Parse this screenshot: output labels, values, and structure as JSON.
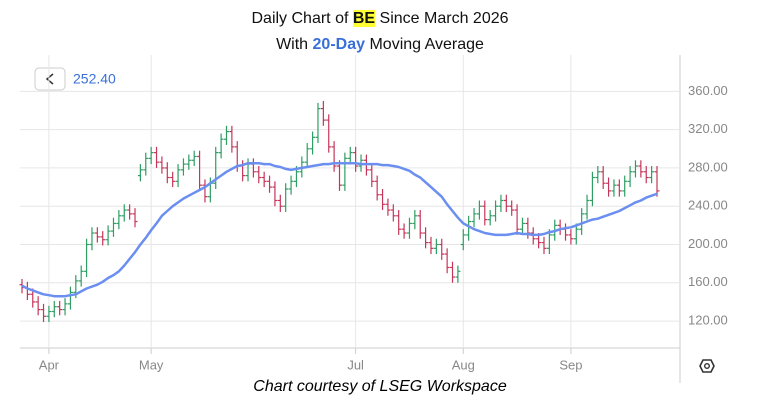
{
  "chart_data": {
    "type": "ohlc",
    "title_parts": [
      "Daily Chart of",
      "BE",
      "Since March 2026"
    ],
    "subtitle_parts": [
      "With",
      "20-Day",
      "Moving Average"
    ],
    "readout": "252.40",
    "footer": "Chart courtesy of LSEG Workspace",
    "categories": [
      null,
      null,
      null,
      null,
      null,
      "Apr",
      null,
      null,
      null,
      null,
      null,
      null,
      null,
      null,
      null,
      null,
      null,
      null,
      null,
      null,
      null,
      null,
      null,
      null,
      "May",
      null,
      null,
      null,
      null,
      null,
      null,
      null,
      null,
      null,
      null,
      null,
      null,
      null,
      null,
      null,
      null,
      null,
      null,
      null,
      null,
      null,
      null,
      null,
      null,
      null,
      null,
      null,
      null,
      null,
      null,
      null,
      null,
      null,
      null,
      null,
      null,
      null,
      "Jul",
      null,
      null,
      null,
      null,
      null,
      null,
      null,
      null,
      null,
      null,
      null,
      null,
      null,
      null,
      null,
      null,
      null,
      null,
      null,
      "Aug",
      null,
      null,
      null,
      null,
      null,
      null,
      null,
      null,
      null,
      null,
      null,
      null,
      null,
      null,
      null,
      null,
      null,
      null,
      null,
      "Sep",
      null,
      null,
      null,
      null,
      null,
      null,
      null,
      null,
      null,
      null,
      null,
      null,
      null,
      null,
      null,
      null
    ],
    "open": [
      158,
      155,
      148,
      140,
      132,
      125,
      130,
      135,
      132,
      138,
      150,
      162,
      172,
      200,
      212,
      208,
      205,
      214,
      222,
      230,
      236,
      232,
      272,
      278,
      290,
      296,
      286,
      280,
      270,
      266,
      278,
      284,
      288,
      292,
      262,
      250,
      264,
      296,
      310,
      318,
      302,
      282,
      272,
      284,
      276,
      270,
      266,
      260,
      246,
      240,
      258,
      266,
      276,
      286,
      300,
      312,
      342,
      330,
      302,
      282,
      262,
      290,
      296,
      282,
      288,
      278,
      266,
      252,
      242,
      236,
      230,
      216,
      212,
      222,
      230,
      212,
      202,
      196,
      200,
      190,
      176,
      166,
      200,
      210,
      224,
      232,
      240,
      226,
      230,
      240,
      246,
      240,
      236,
      216,
      222,
      212,
      206,
      202,
      196,
      210,
      220,
      216,
      210,
      206,
      216,
      232,
      246,
      270,
      276,
      264,
      256,
      262,
      256,
      266,
      276,
      282,
      276,
      270,
      276
    ],
    "high": [
      164,
      161,
      154,
      146,
      138,
      136,
      141,
      141,
      144,
      156,
      168,
      178,
      206,
      218,
      218,
      214,
      220,
      228,
      236,
      242,
      242,
      238,
      284,
      296,
      302,
      302,
      292,
      286,
      276,
      284,
      290,
      294,
      298,
      298,
      268,
      270,
      302,
      316,
      324,
      324,
      308,
      288,
      290,
      290,
      282,
      276,
      272,
      266,
      252,
      264,
      272,
      282,
      292,
      306,
      318,
      348,
      350,
      336,
      308,
      288,
      296,
      302,
      302,
      294,
      294,
      284,
      272,
      258,
      248,
      242,
      236,
      222,
      228,
      236,
      236,
      218,
      208,
      206,
      206,
      196,
      182,
      178,
      216,
      230,
      238,
      246,
      246,
      236,
      246,
      252,
      252,
      246,
      242,
      228,
      228,
      218,
      212,
      208,
      216,
      226,
      226,
      222,
      216,
      222,
      238,
      252,
      276,
      282,
      282,
      270,
      268,
      268,
      272,
      282,
      288,
      288,
      282,
      282,
      282
    ],
    "low": [
      149,
      142,
      134,
      126,
      119,
      119,
      124,
      126,
      126,
      132,
      144,
      156,
      166,
      194,
      202,
      199,
      199,
      208,
      216,
      224,
      226,
      218,
      266,
      272,
      284,
      280,
      274,
      264,
      260,
      260,
      272,
      278,
      282,
      256,
      244,
      244,
      258,
      290,
      304,
      296,
      276,
      266,
      266,
      270,
      264,
      260,
      254,
      240,
      234,
      234,
      252,
      260,
      270,
      280,
      294,
      306,
      324,
      296,
      276,
      256,
      256,
      284,
      276,
      276,
      272,
      260,
      246,
      236,
      230,
      224,
      210,
      206,
      206,
      216,
      206,
      196,
      190,
      190,
      184,
      170,
      160,
      160,
      194,
      204,
      218,
      226,
      220,
      220,
      224,
      234,
      234,
      230,
      210,
      210,
      206,
      200,
      196,
      190,
      190,
      204,
      210,
      204,
      200,
      200,
      210,
      226,
      240,
      264,
      258,
      250,
      250,
      250,
      250,
      260,
      270,
      270,
      264,
      264,
      250
    ],
    "close": [
      155,
      148,
      140,
      132,
      125,
      130,
      135,
      132,
      138,
      150,
      162,
      172,
      200,
      212,
      208,
      205,
      214,
      222,
      230,
      236,
      232,
      224,
      278,
      290,
      296,
      286,
      280,
      270,
      266,
      278,
      284,
      288,
      292,
      262,
      250,
      264,
      296,
      310,
      318,
      302,
      282,
      272,
      284,
      276,
      270,
      266,
      260,
      246,
      240,
      258,
      266,
      276,
      286,
      300,
      312,
      342,
      330,
      302,
      282,
      262,
      290,
      296,
      282,
      288,
      278,
      266,
      252,
      242,
      236,
      230,
      216,
      212,
      222,
      230,
      212,
      202,
      196,
      200,
      190,
      176,
      166,
      172,
      210,
      224,
      232,
      240,
      226,
      230,
      240,
      246,
      240,
      236,
      216,
      222,
      212,
      206,
      202,
      196,
      210,
      220,
      216,
      210,
      206,
      216,
      232,
      246,
      270,
      276,
      264,
      256,
      262,
      256,
      266,
      276,
      282,
      276,
      270,
      276,
      256
    ],
    "up_color": "#2e9e63",
    "down_color": "#c43659",
    "moving_average": {
      "color": "#6b8ff0",
      "values": [
        157,
        154,
        152,
        150,
        148,
        147,
        146,
        146,
        146,
        147,
        148,
        151,
        154,
        156,
        158,
        161,
        165,
        168,
        172,
        178,
        185,
        192,
        200,
        207,
        215,
        222,
        230,
        235,
        240,
        244,
        248,
        251,
        254,
        257,
        260,
        264,
        268,
        272,
        276,
        279,
        282,
        283,
        285,
        285,
        285,
        284,
        284,
        282,
        281,
        279,
        278,
        279,
        280,
        281,
        282,
        283,
        284,
        284,
        285,
        285,
        285,
        285,
        285,
        284,
        284,
        284,
        284,
        283,
        283,
        282,
        281,
        279,
        277,
        273,
        270,
        265,
        260,
        255,
        250,
        242,
        235,
        228,
        222,
        219,
        216,
        214,
        212,
        211,
        210,
        210,
        210,
        211,
        212,
        211,
        211,
        210,
        210,
        211,
        213,
        214,
        216,
        217,
        218,
        220,
        222,
        224,
        226,
        227,
        229,
        231,
        233,
        235,
        238,
        241,
        244,
        246,
        249,
        251,
        253
      ]
    },
    "ylim": [
      95,
      398
    ],
    "yticks": [
      {
        "value": 120,
        "label": "120.00"
      },
      {
        "value": 160,
        "label": "160.00"
      },
      {
        "value": 200,
        "label": "200.00"
      },
      {
        "value": 240,
        "label": "240.00"
      },
      {
        "value": 280,
        "label": "280.00"
      },
      {
        "value": 320,
        "label": "320.00"
      },
      {
        "value": 360,
        "label": "360.00"
      }
    ],
    "grid": true
  }
}
